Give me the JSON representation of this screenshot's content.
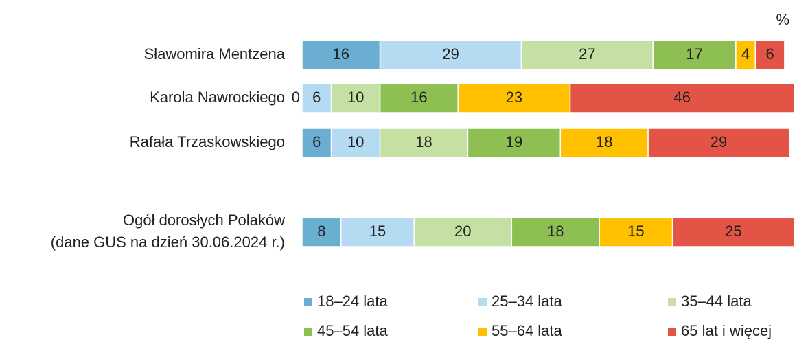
{
  "chart_data": {
    "type": "stacked-bar-horizontal",
    "unit": "%",
    "categories": [
      "Sławomira Mentzena",
      "Karola Nawrockiego",
      "Rafała Trzaskowskiego",
      [
        "Ogół dorosłych Polaków",
        "(dane GUS na dzień 30.06.2024 r.)"
      ]
    ],
    "series": [
      {
        "name": "18–24 lata",
        "color": "#6aaed2",
        "values": [
          16,
          0,
          6,
          8
        ]
      },
      {
        "name": "25–34 lata",
        "color": "#b4dbf2",
        "values": [
          29,
          6,
          10,
          15
        ]
      },
      {
        "name": "35–44 lata",
        "color": "#c5e0a3",
        "values": [
          27,
          10,
          18,
          20
        ]
      },
      {
        "name": "45–54 lata",
        "color": "#8dbf52",
        "values": [
          17,
          16,
          19,
          18
        ]
      },
      {
        "name": "55–64 lata",
        "color": "#ffc000",
        "values": [
          4,
          23,
          18,
          15
        ]
      },
      {
        "name": "65 lat i więcej",
        "color": "#e35446",
        "values": [
          6,
          46,
          29,
          25
        ]
      }
    ],
    "legend": "bottom"
  }
}
